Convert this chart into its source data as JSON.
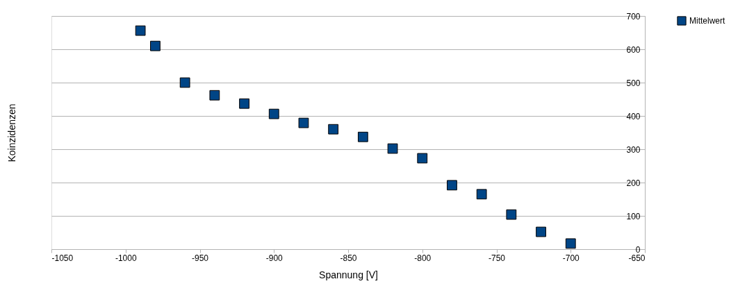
{
  "chart_data": {
    "type": "scatter",
    "xlabel": "Spannung [V]",
    "ylabel": "Koinzidenzen",
    "x": [
      -990,
      -980,
      -960,
      -940,
      -920,
      -900,
      -880,
      -860,
      -840,
      -820,
      -800,
      -780,
      -760,
      -740,
      -720,
      -700
    ],
    "series": [
      {
        "name": "Mittelwert",
        "color": "#004586",
        "values": [
          656,
          610,
          500,
          462,
          437,
          406,
          379,
          360,
          337,
          302,
          273,
          192,
          165,
          104,
          52,
          17
        ]
      }
    ],
    "xlim": [
      -1050,
      -650
    ],
    "xticks": [
      -1050,
      -1000,
      -950,
      -900,
      -850,
      -800,
      -750,
      -700,
      -650
    ],
    "ylim": [
      0,
      700
    ],
    "yticks": [
      0,
      100,
      200,
      300,
      400,
      500,
      600,
      700
    ],
    "grid": "y",
    "legend": "right",
    "marker": "square"
  }
}
